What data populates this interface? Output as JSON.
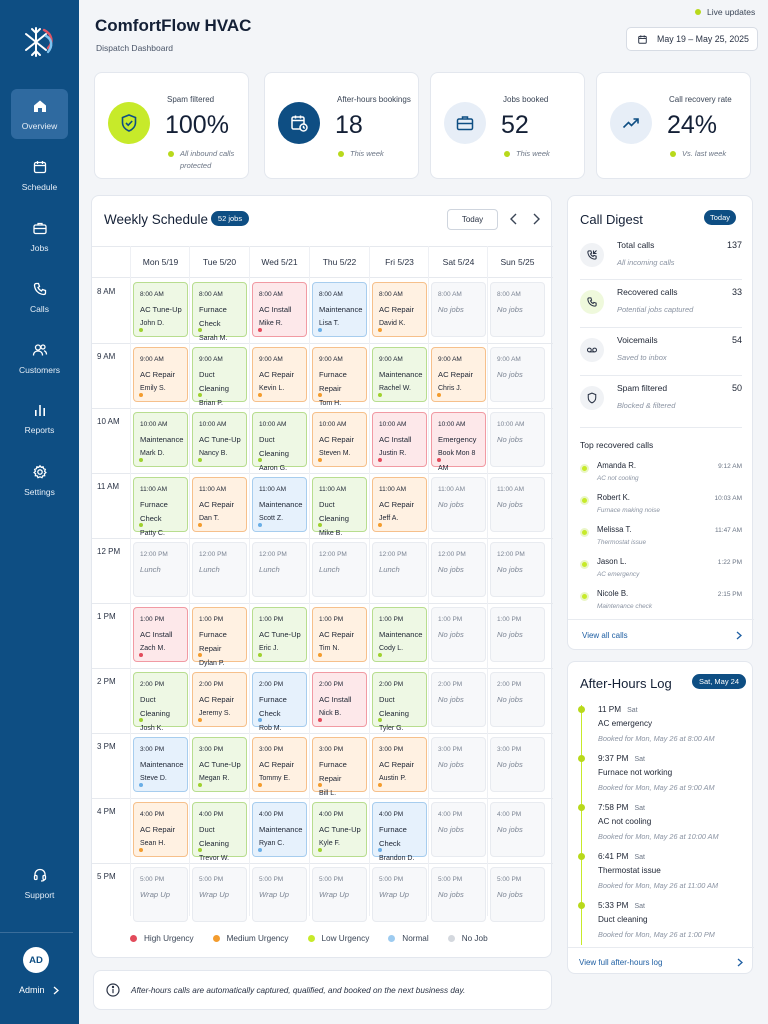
{
  "app": {
    "title": "ComfortFlow HVAC",
    "subtitle": "Dispatch Dashboard",
    "live": "Live updates",
    "date_range": "May 19 – May 25, 2025"
  },
  "nav": [
    {
      "label": "Overview",
      "icon": "home-icon",
      "active": true
    },
    {
      "label": "Schedule",
      "icon": "calendar-icon"
    },
    {
      "label": "Jobs",
      "icon": "briefcase-icon"
    },
    {
      "label": "Calls",
      "icon": "phone-icon"
    },
    {
      "label": "Customers",
      "icon": "users-icon"
    },
    {
      "label": "Reports",
      "icon": "bar-chart-icon"
    },
    {
      "label": "Settings",
      "icon": "gear-icon"
    }
  ],
  "support": {
    "label": "Support",
    "icon": "headset-icon"
  },
  "user": {
    "initials": "AD",
    "name": "Admin"
  },
  "stats": [
    {
      "label": "Spam filtered",
      "value": "100%",
      "note": "All inbound calls protected",
      "icon": "shield-check-icon"
    },
    {
      "label": "After-hours bookings",
      "value": "18",
      "note": "This week",
      "icon": "calendar-clock-icon"
    },
    {
      "label": "Jobs booked",
      "value": "52",
      "note": "This week",
      "icon": "briefcase-icon"
    },
    {
      "label": "Call recovery rate",
      "value": "24%",
      "note": "Vs. last week",
      "icon": "trend-up-icon"
    }
  ],
  "colors": {
    "high": "#e24b5b",
    "medium": "#f39c2e",
    "low": "#9fd130",
    "normal": "#6aaee6",
    "none": "#d4d8de",
    "brand": "#0e4e83",
    "accent": "#c7ea2a"
  },
  "schedule": {
    "title": "Weekly Schedule",
    "badge": "52 jobs",
    "today_label": "Today",
    "days": [
      "Mon 5/19",
      "Tue 5/20",
      "Wed 5/21",
      "Thu 5/22",
      "Fri 5/23",
      "Sat 5/24",
      "Sun 5/25"
    ],
    "rows": [
      {
        "time": "8 AM",
        "slots": [
          {
            "t": "8:00 AM",
            "n": "AC Tune-Up",
            "c": "John D.",
            "p": "low"
          },
          {
            "t": "8:00 AM",
            "n": "Furnace Check",
            "c": "Sarah M.",
            "p": "low"
          },
          {
            "t": "8:00 AM",
            "n": "AC Install",
            "c": "Mike R.",
            "p": "high"
          },
          {
            "t": "8:00 AM",
            "n": "Maintenance",
            "c": "Lisa T.",
            "p": "norm"
          },
          {
            "t": "8:00 AM",
            "n": "AC Repair",
            "c": "David K.",
            "p": "med"
          },
          {
            "t": "8:00 AM",
            "n": "No jobs",
            "c": "",
            "p": "none"
          },
          {
            "t": "8:00 AM",
            "n": "No jobs",
            "c": "",
            "p": "none"
          }
        ]
      },
      {
        "time": "9 AM",
        "slots": [
          {
            "t": "9:00 AM",
            "n": "AC Repair",
            "c": "Emily S.",
            "p": "med"
          },
          {
            "t": "9:00 AM",
            "n": "Duct Cleaning",
            "c": "Brian P.",
            "p": "low"
          },
          {
            "t": "9:00 AM",
            "n": "AC Repair",
            "c": "Kevin L.",
            "p": "med"
          },
          {
            "t": "9:00 AM",
            "n": "Furnace Repair",
            "c": "Tom H.",
            "p": "med"
          },
          {
            "t": "9:00 AM",
            "n": "Maintenance",
            "c": "Rachel W.",
            "p": "low"
          },
          {
            "t": "9:00 AM",
            "n": "AC Repair",
            "c": "Chris J.",
            "p": "med"
          },
          {
            "t": "9:00 AM",
            "n": "No jobs",
            "c": "",
            "p": "none"
          }
        ]
      },
      {
        "time": "10 AM",
        "slots": [
          {
            "t": "10:00 AM",
            "n": "Maintenance",
            "c": "Mark D.",
            "p": "low"
          },
          {
            "t": "10:00 AM",
            "n": "AC Tune-Up",
            "c": "Nancy B.",
            "p": "low"
          },
          {
            "t": "10:00 AM",
            "n": "Duct Cleaning",
            "c": "Aaron G.",
            "p": "low"
          },
          {
            "t": "10:00 AM",
            "n": "AC Repair",
            "c": "Steven M.",
            "p": "med"
          },
          {
            "t": "10:00 AM",
            "n": "AC Install",
            "c": "Justin R.",
            "p": "high"
          },
          {
            "t": "10:00 AM",
            "n": "Emergency",
            "c": "Book Mon 8 AM",
            "p": "high"
          },
          {
            "t": "10:00 AM",
            "n": "No jobs",
            "c": "",
            "p": "none"
          }
        ]
      },
      {
        "time": "11 AM",
        "slots": [
          {
            "t": "11:00 AM",
            "n": "Furnace Check",
            "c": "Patty C.",
            "p": "low"
          },
          {
            "t": "11:00 AM",
            "n": "AC Repair",
            "c": "Dan T.",
            "p": "med"
          },
          {
            "t": "11:00 AM",
            "n": "Maintenance",
            "c": "Scott Z.",
            "p": "norm"
          },
          {
            "t": "11:00 AM",
            "n": "Duct Cleaning",
            "c": "Mike B.",
            "p": "low"
          },
          {
            "t": "11:00 AM",
            "n": "AC Repair",
            "c": "Jeff A.",
            "p": "med"
          },
          {
            "t": "11:00 AM",
            "n": "No jobs",
            "c": "",
            "p": "none"
          },
          {
            "t": "11:00 AM",
            "n": "No jobs",
            "c": "",
            "p": "none"
          }
        ]
      },
      {
        "time": "12 PM",
        "slots": [
          {
            "t": "12:00 PM",
            "n": "Lunch",
            "c": "",
            "p": "none"
          },
          {
            "t": "12:00 PM",
            "n": "Lunch",
            "c": "",
            "p": "none"
          },
          {
            "t": "12:00 PM",
            "n": "Lunch",
            "c": "",
            "p": "none"
          },
          {
            "t": "12:00 PM",
            "n": "Lunch",
            "c": "",
            "p": "none"
          },
          {
            "t": "12:00 PM",
            "n": "Lunch",
            "c": "",
            "p": "none"
          },
          {
            "t": "12:00 PM",
            "n": "No jobs",
            "c": "",
            "p": "none"
          },
          {
            "t": "12:00 PM",
            "n": "No jobs",
            "c": "",
            "p": "none"
          }
        ]
      },
      {
        "time": "1 PM",
        "slots": [
          {
            "t": "1:00 PM",
            "n": "AC Install",
            "c": "Zach M.",
            "p": "high"
          },
          {
            "t": "1:00 PM",
            "n": "Furnace Repair",
            "c": "Dylan P.",
            "p": "med"
          },
          {
            "t": "1:00 PM",
            "n": "AC Tune-Up",
            "c": "Eric J.",
            "p": "low"
          },
          {
            "t": "1:00 PM",
            "n": "AC Repair",
            "c": "Tim N.",
            "p": "med"
          },
          {
            "t": "1:00 PM",
            "n": "Maintenance",
            "c": "Cody L.",
            "p": "low"
          },
          {
            "t": "1:00 PM",
            "n": "No jobs",
            "c": "",
            "p": "none"
          },
          {
            "t": "1:00 PM",
            "n": "No jobs",
            "c": "",
            "p": "none"
          }
        ]
      },
      {
        "time": "2 PM",
        "slots": [
          {
            "t": "2:00 PM",
            "n": "Duct Cleaning",
            "c": "Josh K.",
            "p": "low"
          },
          {
            "t": "2:00 PM",
            "n": "AC Repair",
            "c": "Jeremy S.",
            "p": "med"
          },
          {
            "t": "2:00 PM",
            "n": "Furnace Check",
            "c": "Rob M.",
            "p": "norm"
          },
          {
            "t": "2:00 PM",
            "n": "AC Install",
            "c": "Nick B.",
            "p": "high"
          },
          {
            "t": "2:00 PM",
            "n": "Duct Cleaning",
            "c": "Tyler G.",
            "p": "low"
          },
          {
            "t": "2:00 PM",
            "n": "No jobs",
            "c": "",
            "p": "none"
          },
          {
            "t": "2:00 PM",
            "n": "No jobs",
            "c": "",
            "p": "none"
          }
        ]
      },
      {
        "time": "3 PM",
        "slots": [
          {
            "t": "3:00 PM",
            "n": "Maintenance",
            "c": "Steve D.",
            "p": "norm"
          },
          {
            "t": "3:00 PM",
            "n": "AC Tune-Up",
            "c": "Megan R.",
            "p": "low"
          },
          {
            "t": "3:00 PM",
            "n": "AC Repair",
            "c": "Tommy E.",
            "p": "med"
          },
          {
            "t": "3:00 PM",
            "n": "Furnace Repair",
            "c": "Bill L.",
            "p": "med"
          },
          {
            "t": "3:00 PM",
            "n": "AC Repair",
            "c": "Austin P.",
            "p": "med"
          },
          {
            "t": "3:00 PM",
            "n": "No jobs",
            "c": "",
            "p": "none"
          },
          {
            "t": "3:00 PM",
            "n": "No jobs",
            "c": "",
            "p": "none"
          }
        ]
      },
      {
        "time": "4 PM",
        "slots": [
          {
            "t": "4:00 PM",
            "n": "AC Repair",
            "c": "Sean H.",
            "p": "med"
          },
          {
            "t": "4:00 PM",
            "n": "Duct Cleaning",
            "c": "Trevor W.",
            "p": "low"
          },
          {
            "t": "4:00 PM",
            "n": "Maintenance",
            "c": "Ryan C.",
            "p": "norm"
          },
          {
            "t": "4:00 PM",
            "n": "AC Tune-Up",
            "c": "Kyle F.",
            "p": "low"
          },
          {
            "t": "4:00 PM",
            "n": "Furnace Check",
            "c": "Brandon D.",
            "p": "norm"
          },
          {
            "t": "4:00 PM",
            "n": "No jobs",
            "c": "",
            "p": "none"
          },
          {
            "t": "4:00 PM",
            "n": "No jobs",
            "c": "",
            "p": "none"
          }
        ]
      },
      {
        "time": "5 PM",
        "slots": [
          {
            "t": "5:00 PM",
            "n": "Wrap Up",
            "c": "",
            "p": "none"
          },
          {
            "t": "5:00 PM",
            "n": "Wrap Up",
            "c": "",
            "p": "none"
          },
          {
            "t": "5:00 PM",
            "n": "Wrap Up",
            "c": "",
            "p": "none"
          },
          {
            "t": "5:00 PM",
            "n": "Wrap Up",
            "c": "",
            "p": "none"
          },
          {
            "t": "5:00 PM",
            "n": "Wrap Up",
            "c": "",
            "p": "none"
          },
          {
            "t": "5:00 PM",
            "n": "No jobs",
            "c": "",
            "p": "none"
          },
          {
            "t": "5:00 PM",
            "n": "No jobs",
            "c": "",
            "p": "none"
          }
        ]
      }
    ],
    "legend": [
      "High Urgency",
      "Medium Urgency",
      "Low Urgency",
      "Normal",
      "No Job"
    ]
  },
  "info_note": "After-hours calls are automatically captured, qualified, and booked on the next business day.",
  "digest": {
    "title": "Call Digest",
    "badge": "Today",
    "rows": [
      {
        "label": "Total calls",
        "sub": "All incoming calls",
        "count": "137",
        "icon": "phone-incoming-icon"
      },
      {
        "label": "Recovered calls",
        "sub": "Potential jobs captured",
        "count": "33",
        "icon": "phone-icon"
      },
      {
        "label": "Voicemails",
        "sub": "Saved to inbox",
        "count": "54",
        "icon": "voicemail-icon"
      },
      {
        "label": "Spam filtered",
        "sub": "Blocked & filtered",
        "count": "50",
        "icon": "shield-icon"
      }
    ],
    "recovered_title": "Top recovered calls",
    "recovered": [
      {
        "name": "Amanda R.",
        "issue": "AC not cooling",
        "time": "9:12 AM"
      },
      {
        "name": "Robert K.",
        "issue": "Furnace making noise",
        "time": "10:03 AM"
      },
      {
        "name": "Melissa T.",
        "issue": "Thermostat issue",
        "time": "11:47 AM"
      },
      {
        "name": "Jason L.",
        "issue": "AC emergency",
        "time": "1:22 PM"
      },
      {
        "name": "Nicole B.",
        "issue": "Maintenance check",
        "time": "2:15 PM"
      }
    ],
    "view_all": "View all calls"
  },
  "after_hours": {
    "title": "After-Hours Log",
    "badge": "Sat, May 24",
    "events": [
      {
        "time": "11 PM",
        "day": "Sat",
        "type": "AC emergency",
        "booked": "Booked for Mon, May 26 at 8:00 AM"
      },
      {
        "time": "9:37 PM",
        "day": "Sat",
        "type": "Furnace not working",
        "booked": "Booked for Mon, May 26 at 9:00 AM"
      },
      {
        "time": "7:58 PM",
        "day": "Sat",
        "type": "AC not cooling",
        "booked": "Booked for Mon, May 26 at 10:00 AM"
      },
      {
        "time": "6:41 PM",
        "day": "Sat",
        "type": "Thermostat issue",
        "booked": "Booked for Mon, May 26 at 11:00 AM"
      },
      {
        "time": "5:33 PM",
        "day": "Sat",
        "type": "Duct cleaning",
        "booked": "Booked for Mon, May 26 at 1:00 PM"
      }
    ],
    "view_full": "View full after-hours log"
  }
}
